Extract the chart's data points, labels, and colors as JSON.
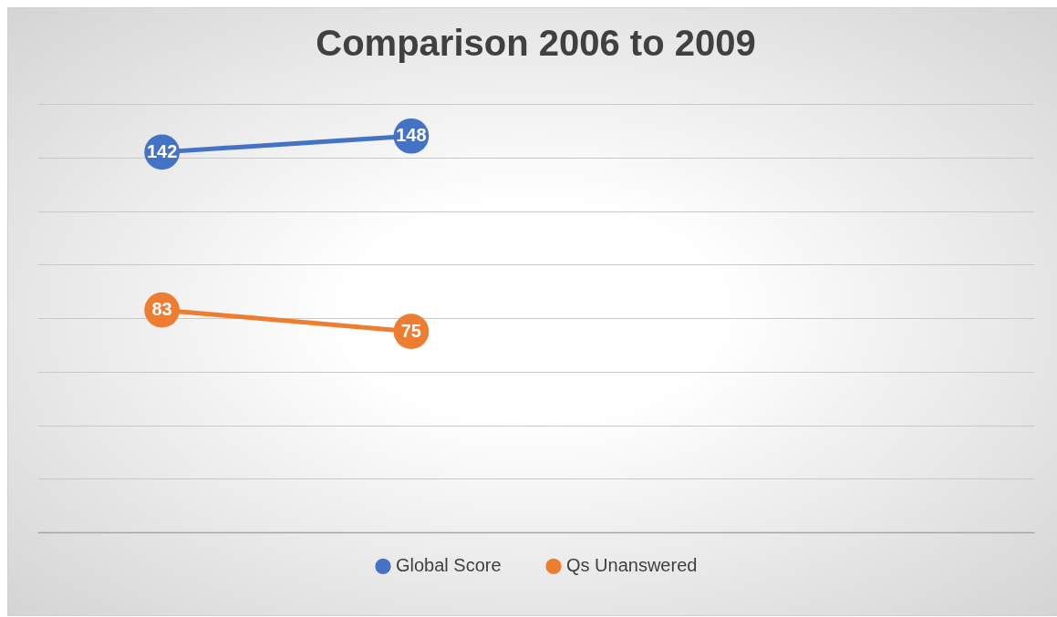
{
  "chart_data": {
    "type": "line",
    "title": "Comparison 2006 to 2009",
    "categories": [
      null,
      null,
      null,
      null
    ],
    "series": [
      {
        "name": "Global Score",
        "color": "#4472c4",
        "values": [
          142,
          148,
          null,
          null
        ]
      },
      {
        "name": "Qs Unanswered",
        "color": "#ed7d31",
        "values": [
          83,
          75,
          null,
          null
        ]
      }
    ],
    "ylim": [
      0,
      160
    ],
    "yticks": [
      {
        "value": 0,
        "label": null
      },
      {
        "value": 20,
        "label": null
      },
      {
        "value": 40,
        "label": null
      },
      {
        "value": 60,
        "label": null
      },
      {
        "value": 80,
        "label": null
      },
      {
        "value": 100,
        "label": null
      },
      {
        "value": 120,
        "label": null
      },
      {
        "value": 140,
        "label": null
      },
      {
        "value": 160,
        "label": null
      }
    ],
    "grid": "y",
    "legend": "bottom",
    "marker": "circle",
    "line_style": "solid",
    "data_labels": true
  }
}
